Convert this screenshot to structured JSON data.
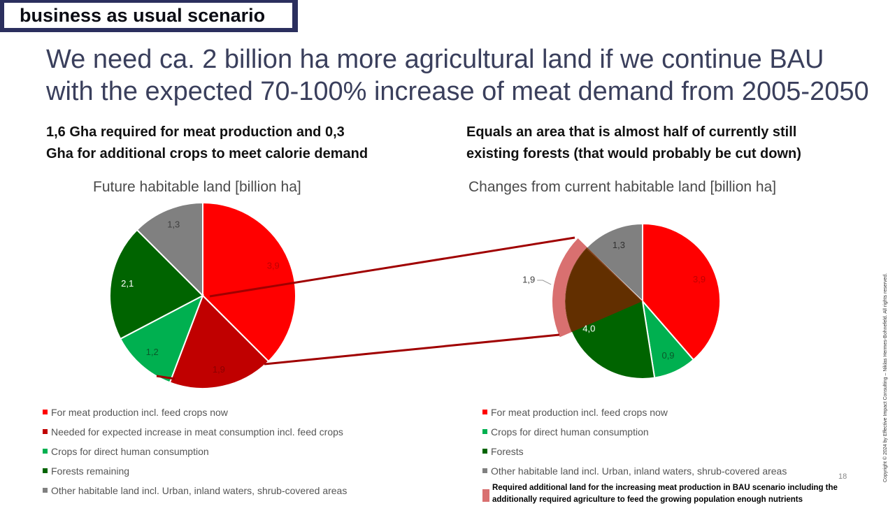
{
  "tag": "business as usual scenario",
  "headline": {
    "line1": "We need ca. 2 billion ha more agricultural land if we continue BAU",
    "line2": "with the expected 70-100% increase of meat demand from 2005-2050"
  },
  "left_subhead": {
    "line1": "1,6 Gha required for meat production and 0,3",
    "line2": "Gha for additional crops to meet calorie demand"
  },
  "right_subhead": {
    "line1": "Equals an area that is almost half of currently still",
    "line2": "existing forests (that would probably be cut down)"
  },
  "chart_data": [
    {
      "type": "pie",
      "title": "Future habitable land [billion ha]",
      "labels": [
        "For meat production incl. feed crops now",
        "Needed for expected increase in meat consumption incl. feed crops",
        "Crops for direct human consumption",
        "Forests remaining",
        "Other habitable land incl. Urban, inland waters, shrub-covered areas"
      ],
      "values": [
        3.9,
        1.9,
        1.2,
        2.1,
        1.3
      ],
      "data_labels": [
        "3,9",
        "1,9",
        "1,2",
        "2,1",
        "1,3"
      ],
      "colors": [
        "#ff0000",
        "#c00000",
        "#00b050",
        "#006400",
        "#808080"
      ],
      "legend": "bottom"
    },
    {
      "type": "pie",
      "title": "Changes from current habitable land [billion ha]",
      "labels": [
        "For meat production incl. feed crops now",
        "Crops for direct human consumption",
        "Forests",
        "Other habitable land incl. Urban, inland waters, shrub-covered areas"
      ],
      "values": [
        3.9,
        0.9,
        4.0,
        1.3
      ],
      "data_labels": [
        "3,9",
        "0,9",
        "4,0",
        "1,3"
      ],
      "colors": [
        "#ff0000",
        "#00b050",
        "#006400",
        "#808080"
      ],
      "highlight": {
        "value": 1.9,
        "label": "1,9",
        "color": "#d97070",
        "overlay_color": "#702800",
        "legend": "Required additional land for the increasing meat production in BAU scenario including the additionally required agriculture to feed the growing population enough nutrients"
      },
      "legend": "bottom"
    }
  ],
  "page_number": "18",
  "copyright": "Copyright © 2024 by Effective Impact Consulting – Niklas Hermes-Bohnefeld. All rights reserved."
}
